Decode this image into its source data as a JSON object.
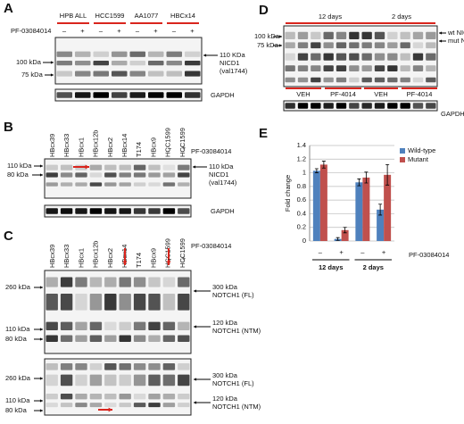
{
  "A": {
    "label": "A",
    "cell_lines": [
      "HPB ALL",
      "HCC1599",
      "AA1077",
      "HBCx14"
    ],
    "treatment": "PF-03084014",
    "signs": [
      "–",
      "+",
      "–",
      "+",
      "–",
      "+",
      "–",
      "+"
    ],
    "left_markers": [
      "100 kDa",
      "75 kDa"
    ],
    "right_labels": [
      "110 KDa",
      "NICD1",
      "(val1744)"
    ],
    "loading": "GAPDH"
  },
  "B": {
    "label": "B",
    "lanes": [
      "HBcx39",
      "HBcx33",
      "HBcx1",
      "HBcx12b",
      "HBcx2",
      "HBcx14",
      "T174",
      "HBcx9",
      "HCC1599",
      "HCC1599"
    ],
    "highlight": 5,
    "treatment": "PF-03084014",
    "signs": [
      "–",
      "+"
    ],
    "left_markers": [
      "110 kDa",
      "80 kDa"
    ],
    "right_labels": [
      "110 kDa",
      "NICD1",
      "(val1744)"
    ],
    "loading": "GAPDH"
  },
  "C": {
    "label": "C",
    "lanes": [
      "HBcx39",
      "HBcx33",
      "HBcx1",
      "HBcx12b",
      "HBcx2",
      "HBcx14",
      "T174",
      "HBcx9",
      "HCC1599",
      "HCC1599"
    ],
    "highlight": 5,
    "treatment": "PF-03084014",
    "signs": [
      "–",
      "+"
    ],
    "upper": {
      "left_markers": [
        "260 kDa",
        "110 kDa",
        "80 kDa"
      ],
      "right_labels": [
        "300 kDa",
        "NOTCH1 (FL)",
        "120 kDa",
        "NOTCH1 (NTM)"
      ]
    },
    "lower": {
      "left_markers": [
        "260 kDa",
        "110 kDa",
        "80 kDa"
      ],
      "right_labels": [
        "300 kDa",
        "NOTCH1 (FL)",
        "120 kDa",
        "NOTCH1 (NTM)"
      ]
    }
  },
  "D": {
    "label": "D",
    "groups": [
      "12 days",
      "2 days"
    ],
    "left_markers": [
      "100 kDa",
      "75 kDa"
    ],
    "right_labels": [
      "wt NICD1",
      "mut NICD1"
    ],
    "conditions": [
      "VEH",
      "PF-4014",
      "VEH",
      "PF-4014"
    ],
    "loading": "GAPDH"
  },
  "E": {
    "label": "E",
    "type": "bar",
    "ylabel": "Fold change",
    "ylim": [
      0,
      1.4
    ],
    "yticks": [
      0,
      0.2,
      0.4,
      0.6,
      0.8,
      1,
      1.2,
      1.4
    ],
    "grid": true,
    "categories": [
      "–",
      "+",
      "–",
      "+"
    ],
    "groups": [
      "12 days",
      "2 days"
    ],
    "xlabel": "PF-03084014",
    "series": [
      {
        "name": "Wild-type",
        "color": "#4f81bd",
        "values": [
          1.03,
          0.03,
          0.86,
          0.46
        ],
        "errors": [
          0.03,
          0.02,
          0.05,
          0.08
        ]
      },
      {
        "name": "Mutant",
        "color": "#c0504d",
        "values": [
          1.12,
          0.16,
          0.93,
          0.97
        ],
        "errors": [
          0.05,
          0.04,
          0.08,
          0.15
        ]
      }
    ]
  }
}
